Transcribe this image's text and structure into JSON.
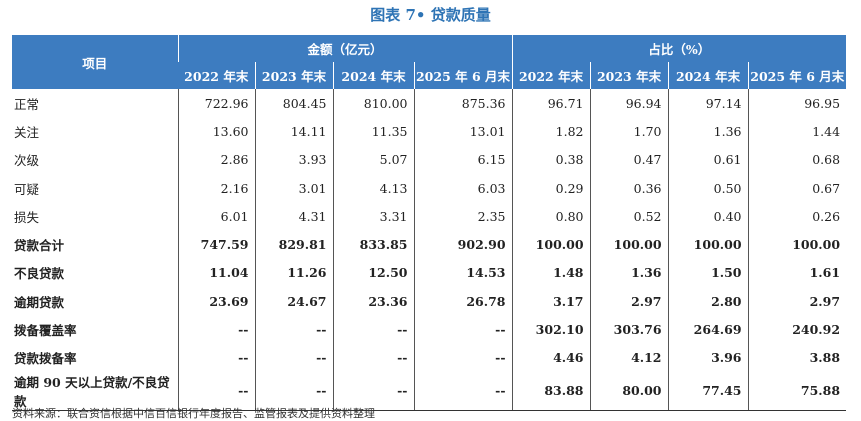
{
  "header": {
    "title": "图表 7• 贷款质量"
  },
  "table": {
    "item_header": "项目",
    "groups": [
      "金额（亿元）",
      "占比（%）"
    ],
    "subheaders": [
      "2022 年末",
      "2023 年末",
      "2024 年末",
      "2025 年 6 月末",
      "2022 年末",
      "2023 年末",
      "2024 年末",
      "2025 年 6 月末"
    ],
    "rows": [
      [
        "正常",
        "722.96",
        "804.45",
        "810.00",
        "875.36",
        "96.71",
        "96.94",
        "97.14",
        "96.95"
      ],
      [
        "关注",
        "13.60",
        "14.11",
        "11.35",
        "13.01",
        "1.82",
        "1.70",
        "1.36",
        "1.44"
      ],
      [
        "次级",
        "2.86",
        "3.93",
        "5.07",
        "6.15",
        "0.38",
        "0.47",
        "0.61",
        "0.68"
      ],
      [
        "可疑",
        "2.16",
        "3.01",
        "4.13",
        "6.03",
        "0.29",
        "0.36",
        "0.50",
        "0.67"
      ],
      [
        "损失",
        "6.01",
        "4.31",
        "3.31",
        "2.35",
        "0.80",
        "0.52",
        "0.40",
        "0.26"
      ],
      [
        "贷款合计",
        "747.59",
        "829.81",
        "833.85",
        "902.90",
        "100.00",
        "100.00",
        "100.00",
        "100.00"
      ],
      [
        "不良贷款",
        "11.04",
        "11.26",
        "12.50",
        "14.53",
        "1.48",
        "1.36",
        "1.50",
        "1.61"
      ],
      [
        "逾期贷款",
        "23.69",
        "24.67",
        "23.36",
        "26.78",
        "3.17",
        "2.97",
        "2.80",
        "2.97"
      ],
      [
        "拨备覆盖率",
        "--",
        "--",
        "--",
        "--",
        "302.10",
        "303.76",
        "264.69",
        "240.92"
      ],
      [
        "贷款拨备率",
        "--",
        "--",
        "--",
        "--",
        "4.46",
        "4.12",
        "3.96",
        "3.88"
      ],
      [
        "逾期 90 天以上贷款/不良贷款",
        "--",
        "--",
        "--",
        "--",
        "83.88",
        "80.00",
        "77.45",
        "75.88"
      ]
    ]
  },
  "footer": {
    "source": "资料来源：联合资信根据中信百信银行年度报告、监管报表及提供资料整理"
  }
}
